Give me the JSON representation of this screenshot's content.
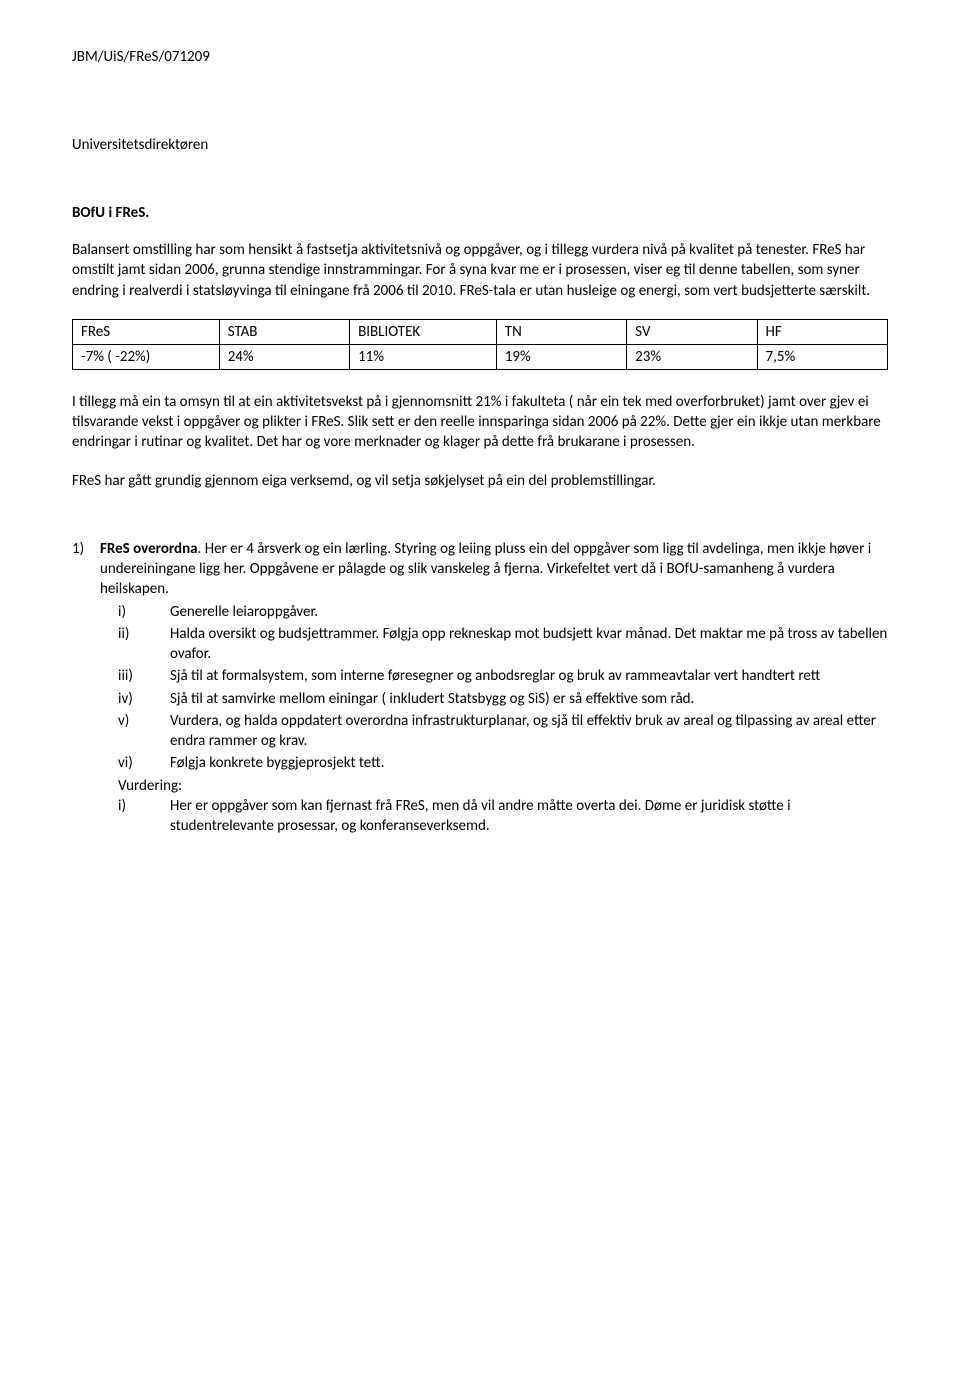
{
  "doc_id": "JBM/UiS/FReS/071209",
  "addressee": "Universitetsdirektøren",
  "subject": "BOfU i FReS.",
  "intro_para": "Balansert omstilling har som hensikt å fastsetja aktivitetsnivå og oppgåver, og i tillegg vurdera nivå på kvalitet på tenester. FReS har omstilt jamt sidan 2006, grunna stendige innstrammingar. For å syna kvar me er i prosessen, viser eg til denne  tabellen, som syner endring i realverdi i statsløyvinga til einingane frå 2006 til 2010. FReS-tala er utan husleige og energi, som vert budsjetterte særskilt.",
  "table": {
    "columns": [
      "FReS",
      "STAB",
      "BIBLIOTEK",
      "TN",
      "SV",
      "HF"
    ],
    "rows": [
      [
        "-7% ( -22%)",
        "24%",
        "11%",
        "19%",
        "23%",
        "7,5%"
      ]
    ],
    "col_widths_pct": [
      18,
      16,
      18,
      16,
      16,
      16
    ]
  },
  "para_after_table": "I tillegg må ein ta omsyn til at ein aktivitetsvekst på i gjennomsnitt 21% i fakulteta ( når ein tek med overforbruket) jamt over  gjev  ei tilsvarande vekst i oppgåver og plikter i FReS. Slik sett er den reelle innsparinga sidan 2006 på 22%. Dette gjer ein ikkje utan merkbare endringar i rutinar og kvalitet. Det har og vore merknader og klager på dette frå brukarane i prosessen.",
  "para_review": "FReS har gått grundig gjennom eiga verksemd, og vil setja søkjelyset på ein del  problemstillingar.",
  "item1": {
    "number": "1)",
    "title_bold": "FReS overordna",
    "title_rest": ". Her er 4 årsverk og ein lærling. Styring og leiing pluss ein del oppgåver som ligg til avdelinga, men ikkje høver i undereiningane ligg her. Oppgåvene er pålagde og slik vanskeleg å fjerna. Virkefeltet vert då i BOfU-samanheng å vurdera heilskapen.",
    "sub": [
      {
        "marker": "i)",
        "text": "Generelle leiaroppgåver."
      },
      {
        "marker": "ii)",
        "text": "Halda oversikt og budsjettrammer. Følgja opp rekneskap mot budsjett kvar månad. Det maktar me på tross av tabellen ovafor."
      },
      {
        "marker": "iii)",
        "text": "Sjå til at formalsystem, som interne føresegner og anbodsreglar og bruk av rammeavtalar vert handtert rett"
      },
      {
        "marker": "iv)",
        "text": "Sjå til at samvirke mellom einingar ( inkludert Statsbygg og SiS)  er så effektive som råd."
      },
      {
        "marker": "v)",
        "text": "Vurdera, og halda oppdatert overordna infrastrukturplanar, og sjå til effektiv bruk av areal og tilpassing av areal etter endra rammer og krav."
      },
      {
        "marker": "vi)",
        "text": "Følgja konkrete byggjeprosjekt tett."
      }
    ],
    "vurdering_label": "Vurdering:",
    "vurdering_sub": [
      {
        "marker": "i)",
        "text": "Her er oppgåver som kan fjernast frå FReS, men då vil andre måtte overta dei. Døme er juridisk støtte i studentrelevante prosessar, og konferanseverksemd."
      }
    ]
  }
}
